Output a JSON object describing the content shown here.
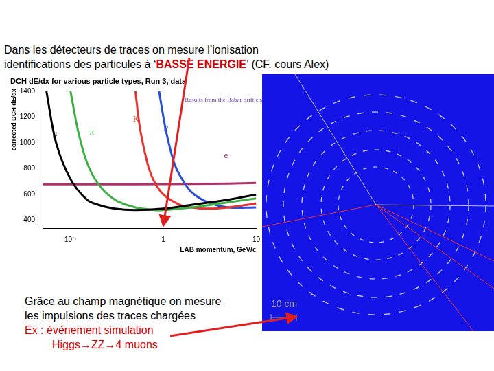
{
  "heading": {
    "line1": "Dans les détecteurs de traces on mesure l’ionisation",
    "line2_parts": [
      "identifications des particules à ‘",
      "BASSE ENERGIE",
      "’ (CF. cours Alex)"
    ]
  },
  "chart_data": {
    "type": "line",
    "title": "DCH dE/dx for various particle types, Run 3, data",
    "x_label": "LAB momentum, GeV/c",
    "y_label": "corrected DCH dE/dx",
    "log": "x",
    "xlim": [
      0.05,
      10
    ],
    "ylim": [
      340,
      1420
    ],
    "xticks": [
      {
        "value": 0.1,
        "label": "10⁻¹"
      },
      1,
      10
    ],
    "yticks": [
      400,
      600,
      800,
      1000,
      1200,
      1400
    ],
    "grid": false,
    "series": [
      {
        "name": "μ",
        "color": "#000000",
        "x": [
          0.055,
          0.07,
          0.1,
          0.15,
          0.2,
          0.3,
          0.5,
          1,
          2,
          5,
          10
        ],
        "values": [
          1400,
          1000,
          720,
          560,
          520,
          490,
          480,
          490,
          520,
          560,
          600
        ]
      },
      {
        "name": "π",
        "color": "#3cb043",
        "x": [
          0.1,
          0.12,
          0.15,
          0.2,
          0.3,
          0.5,
          0.8,
          1,
          2,
          5,
          10
        ],
        "values": [
          1400,
          1100,
          850,
          680,
          560,
          500,
          480,
          480,
          500,
          540,
          570
        ]
      },
      {
        "name": "K",
        "color": "#e8322b",
        "x": [
          0.5,
          0.55,
          0.6,
          0.7,
          0.8,
          1,
          1.5,
          2,
          3,
          5,
          10
        ],
        "values": [
          1400,
          1150,
          1000,
          800,
          700,
          600,
          520,
          500,
          490,
          500,
          530
        ]
      },
      {
        "name": "P",
        "color": "#2a4fd6",
        "x": [
          0.9,
          1,
          1.1,
          1.3,
          1.5,
          2,
          3,
          5,
          10
        ],
        "values": [
          1400,
          1200,
          1050,
          850,
          750,
          620,
          540,
          500,
          500
        ]
      },
      {
        "name": "e",
        "color": "#b0306a",
        "x": [
          0.05,
          0.5,
          2,
          5,
          10
        ],
        "values": [
          680,
          680,
          682,
          685,
          690
        ]
      }
    ],
    "annotations": [
      {
        "text": "μ",
        "x": 0.064,
        "y": 1070,
        "color": "#000000"
      },
      {
        "text": "π",
        "x": 0.16,
        "y": 1080,
        "color": "#3cb043"
      },
      {
        "text": "K",
        "x": 0.47,
        "y": 1185,
        "color": "#e8322b"
      },
      {
        "text": "P",
        "x": 1.0,
        "y": 1110,
        "color": "#2a4fd6"
      },
      {
        "text": "e",
        "x": 4.5,
        "y": 900,
        "color": "#b0306a"
      },
      {
        "text": "Results from the Babar drift chamber",
        "x": 1.7,
        "y": 1330,
        "color": "#6a3ab0"
      }
    ]
  },
  "event_display": {
    "scale_label": "10 cm"
  },
  "caption": {
    "lines": [
      "Grâce au champ magnétique on mesure",
      "les impulsions des traces chargées"
    ],
    "example": [
      "Ex : événement simulation",
      "Higgs→ZZ→4 muons"
    ]
  }
}
